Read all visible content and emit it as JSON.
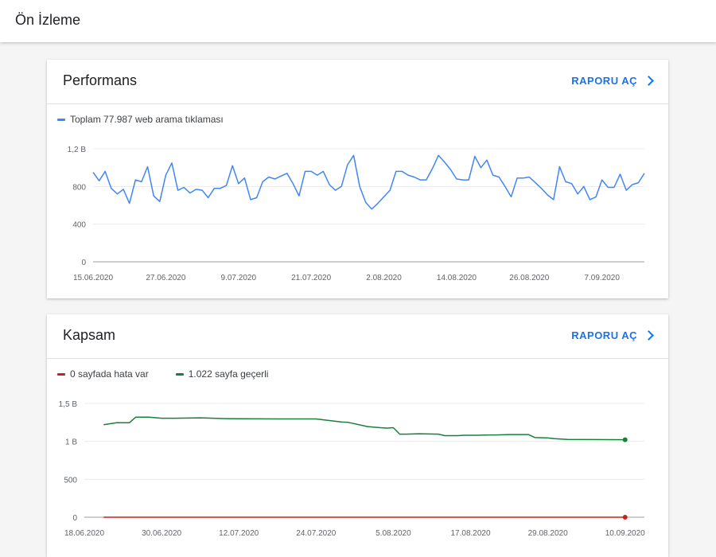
{
  "header": {
    "title": "Ön İzleme"
  },
  "performance": {
    "title": "Performans",
    "report_link": "RAPORU AÇ",
    "legend": [
      {
        "label": "Toplam 77.987 web arama tıklaması",
        "color": "#4285f4"
      }
    ],
    "chart_data": {
      "type": "line",
      "title": "Performans",
      "ylim": [
        0,
        1200
      ],
      "yticks": [
        0,
        400,
        800,
        1200
      ],
      "ytick_labels": [
        "0",
        "400",
        "800",
        "1,2 B"
      ],
      "xticks": [
        0,
        12,
        24,
        36,
        48,
        60,
        72,
        84
      ],
      "xtick_labels": [
        "15.06.2020",
        "27.06.2020",
        "9.07.2020",
        "21.07.2020",
        "2.08.2020",
        "14.08.2020",
        "26.08.2020",
        "7.09.2020"
      ],
      "grid": true,
      "series": [
        {
          "name": "Toplam 77.987 web arama tıklaması",
          "color": "#4285f4",
          "values": [
            950,
            860,
            960,
            780,
            720,
            770,
            620,
            870,
            850,
            1010,
            700,
            640,
            920,
            1050,
            760,
            790,
            730,
            770,
            760,
            680,
            780,
            780,
            810,
            1020,
            830,
            890,
            660,
            680,
            850,
            900,
            880,
            910,
            940,
            830,
            700,
            960,
            960,
            920,
            960,
            820,
            760,
            800,
            1030,
            1130,
            800,
            630,
            560,
            620,
            690,
            760,
            960,
            960,
            920,
            900,
            870,
            870,
            990,
            1130,
            1060,
            980,
            880,
            870,
            870,
            1120,
            1000,
            1080,
            920,
            900,
            800,
            690,
            890,
            890,
            900,
            840,
            780,
            710,
            660,
            1010,
            850,
            830,
            720,
            800,
            660,
            690,
            870,
            790,
            790,
            930,
            760,
            820,
            840,
            940
          ]
        }
      ]
    }
  },
  "coverage": {
    "title": "Kapsam",
    "report_link": "RAPORU AÇ",
    "legend": [
      {
        "label": "0 sayfada hata var",
        "color": "#c5221f"
      },
      {
        "label": "1.022 sayfa geçerli",
        "color": "#188038"
      }
    ],
    "chart_data": {
      "type": "line",
      "title": "Kapsam",
      "ylim": [
        0,
        1500
      ],
      "yticks": [
        0,
        500,
        1000,
        1500
      ],
      "ytick_labels": [
        "0",
        "500",
        "1 B",
        "1,5 B"
      ],
      "xticks": [
        0,
        12,
        24,
        36,
        48,
        60,
        72,
        84
      ],
      "xtick_labels": [
        "18.06.2020",
        "30.06.2020",
        "12.07.2020",
        "24.07.2020",
        "5.08.2020",
        "17.08.2020",
        "29.08.2020",
        "10.09.2020"
      ],
      "grid": true,
      "series": [
        {
          "name": "0 sayfada hata var",
          "color": "#c5221f",
          "x": [
            3,
            84
          ],
          "values": [
            0,
            0
          ],
          "end_marker": true
        },
        {
          "name": "1.022 sayfa geçerli",
          "color": "#188038",
          "x": [
            3,
            5,
            7,
            8,
            10,
            12,
            14,
            18,
            20,
            22,
            24,
            30,
            36,
            40,
            41,
            44,
            46,
            47,
            48,
            49,
            50,
            52,
            55,
            56,
            58,
            59,
            61,
            63,
            64,
            66,
            69,
            70,
            72,
            73,
            75,
            84
          ],
          "values": [
            1220,
            1245,
            1245,
            1320,
            1320,
            1305,
            1305,
            1310,
            1305,
            1300,
            1298,
            1295,
            1295,
            1255,
            1250,
            1195,
            1180,
            1175,
            1180,
            1095,
            1095,
            1100,
            1095,
            1075,
            1075,
            1080,
            1080,
            1085,
            1085,
            1090,
            1090,
            1050,
            1045,
            1035,
            1025,
            1022
          ],
          "end_marker": true
        }
      ]
    }
  }
}
